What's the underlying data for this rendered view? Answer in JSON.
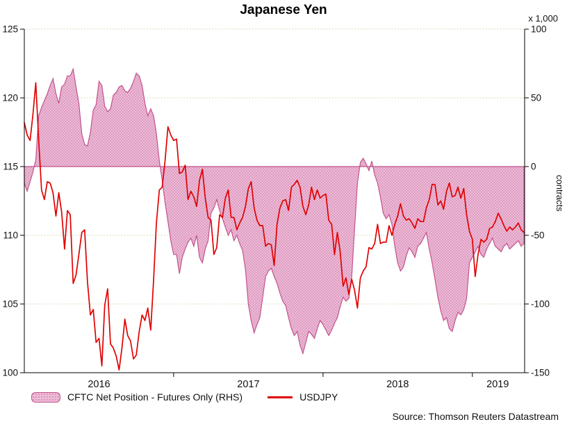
{
  "chart": {
    "title": "Japanese Yen",
    "source": "Source: Thomson Reuters Datastream",
    "right_axis": {
      "unit": "x 1,000",
      "title": "contracts"
    },
    "legend": {
      "area_label": "CFTC Net Position - Futures Only (RHS)",
      "line_label": "USDJPY"
    }
  },
  "chart_data": {
    "type": "area+line",
    "title": "Japanese Yen",
    "grid": "horizontal-dotted",
    "legend_position": "bottom",
    "x_domain": [
      2016.0,
      2019.35
    ],
    "x_start": 2016.0,
    "x_step_years": 0.01923077,
    "x_ticks": [
      {
        "label": "2016",
        "center": 2016.5
      },
      {
        "label": "2017",
        "center": 2017.5
      },
      {
        "label": "2018",
        "center": 2018.5
      },
      {
        "label": "2019",
        "center": 2019.17
      }
    ],
    "year_boundaries": [
      2017,
      2018,
      2019
    ],
    "left_axis": {
      "series": "USDJPY",
      "range": [
        100,
        125
      ],
      "ticks": [
        125,
        120,
        115,
        110,
        105,
        100
      ]
    },
    "right_axis": {
      "series": "CFTC Net Position - Futures Only (RHS)",
      "unit": "x 1,000",
      "label": "contracts",
      "range": [
        -150,
        100
      ],
      "ticks": [
        100,
        50,
        0,
        -50,
        -100,
        -150
      ]
    },
    "series": [
      {
        "name": "CFTC Net Position - Futures Only (RHS)",
        "type": "area",
        "axis": "right",
        "values": [
          -12,
          -18,
          -11,
          -4,
          5,
          37,
          43,
          48,
          53,
          59,
          64,
          53,
          46,
          58,
          60,
          66,
          66,
          71,
          58,
          46,
          24,
          16,
          15,
          25,
          41,
          45,
          62,
          59,
          44,
          40,
          42,
          52,
          54,
          58,
          59,
          55,
          54,
          57,
          62,
          68,
          66,
          59,
          46,
          37,
          42,
          37,
          24,
          4,
          -10,
          -26,
          -40,
          -54,
          -64,
          -64,
          -78,
          -66,
          -60,
          -55,
          -52,
          -58,
          -50,
          -66,
          -70,
          -60,
          -54,
          -34,
          -30,
          -24,
          -32,
          -38,
          -44,
          -50,
          -46,
          -54,
          -50,
          -56,
          -61,
          -75,
          -100,
          -112,
          -121,
          -115,
          -110,
          -95,
          -80,
          -76,
          -74,
          -80,
          -85,
          -92,
          -98,
          -101,
          -110,
          -118,
          -123,
          -120,
          -130,
          -136,
          -128,
          -120,
          -122,
          -125,
          -118,
          -112,
          -115,
          -119,
          -123,
          -119,
          -114,
          -110,
          -102,
          -95,
          -98,
          -96,
          -80,
          -45,
          -12,
          3,
          6,
          2,
          -3,
          4,
          -6,
          -12,
          -22,
          -34,
          -38,
          -35,
          -42,
          -58,
          -70,
          -76,
          -73,
          -65,
          -59,
          -62,
          -66,
          -58,
          -56,
          -52,
          -48,
          -60,
          -70,
          -82,
          -95,
          -105,
          -112,
          -110,
          -118,
          -120,
          -112,
          -106,
          -108,
          -104,
          -96,
          -70,
          -66,
          -62,
          -58,
          -64,
          -66,
          -60,
          -56,
          -52,
          -58,
          -60,
          -62,
          -58,
          -56,
          -60,
          -58,
          -56,
          -54,
          -58,
          -56
        ]
      },
      {
        "name": "USDJPY",
        "type": "line",
        "axis": "left",
        "values": [
          118.2,
          117.3,
          116.9,
          118.8,
          121.1,
          116.9,
          113.3,
          112.6,
          113.9,
          113.8,
          113.1,
          111.4,
          113.1,
          111.7,
          109.0,
          111.8,
          111.5,
          106.5,
          107.1,
          108.6,
          110.2,
          110.4,
          106.6,
          104.2,
          104.6,
          102.2,
          102.5,
          100.5,
          104.9,
          106.1,
          102.1,
          101.8,
          101.2,
          100.2,
          101.8,
          103.9,
          102.7,
          102.3,
          101.0,
          101.3,
          103.0,
          104.2,
          103.8,
          104.7,
          103.1,
          106.7,
          110.9,
          113.3,
          113.5,
          115.4,
          117.9,
          117.3,
          116.9,
          117.0,
          114.5,
          114.6,
          115.1,
          112.6,
          113.2,
          112.8,
          112.1,
          114.0,
          114.8,
          112.7,
          111.3,
          111.1,
          108.6,
          109.1,
          111.5,
          111.3,
          112.7,
          113.3,
          111.3,
          111.3,
          110.4,
          110.9,
          111.3,
          112.1,
          113.4,
          113.9,
          112.0,
          111.1,
          110.7,
          110.7,
          109.2,
          109.4,
          109.3,
          107.8,
          110.8,
          112.0,
          112.5,
          112.6,
          111.8,
          113.5,
          113.7,
          114.0,
          113.5,
          112.1,
          111.5,
          112.2,
          113.5,
          112.6,
          113.3,
          112.7,
          112.9,
          113.0,
          111.1,
          110.8,
          108.6,
          110.2,
          108.8,
          106.3,
          106.9,
          105.7,
          106.8,
          106.0,
          104.7,
          106.9,
          107.4,
          107.7,
          109.1,
          109.0,
          109.4,
          110.8,
          109.4,
          109.5,
          109.5,
          110.7,
          110.0,
          110.8,
          111.4,
          112.3,
          111.4,
          111.1,
          111.2,
          110.9,
          110.5,
          111.2,
          111.0,
          111.0,
          112.0,
          112.6,
          113.7,
          113.7,
          112.2,
          112.5,
          111.9,
          113.2,
          113.8,
          112.8,
          112.9,
          113.5,
          112.7,
          113.4,
          111.5,
          110.3,
          109.7,
          107.0,
          108.6,
          109.7,
          109.5,
          109.7,
          110.5,
          110.6,
          111.0,
          111.6,
          111.2,
          110.7,
          110.3,
          110.6,
          110.4,
          110.6,
          110.9,
          110.4,
          110.2
        ]
      }
    ],
    "colors": {
      "line": "#e00000",
      "area_fill": "#eebcd6",
      "area_dot": "#d287b5",
      "area_stroke": "#c2538c",
      "grid": "#d5cda2",
      "axis": "#000000",
      "text": "#111111"
    }
  }
}
